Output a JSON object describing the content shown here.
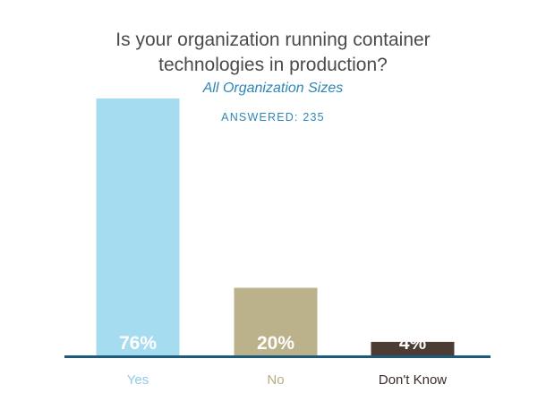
{
  "chart_data": {
    "type": "bar",
    "title": "Is your organization running container\ntechnologies in production?",
    "subtitle": "All Organization Sizes",
    "note": "ANSWERED: 235",
    "categories": [
      "Yes",
      "No",
      "Don't Know"
    ],
    "values": [
      76,
      20,
      4
    ],
    "value_labels": [
      "76%",
      "20%",
      "4%"
    ],
    "ylim": [
      0,
      100
    ],
    "grid": false,
    "legend": "none",
    "bar_colors": [
      "#a6dcf0",
      "#bbb18a",
      "#4d3c33"
    ],
    "category_label_colors": [
      "#8fcbe6",
      "#b7ad85",
      "#3a2e28"
    ],
    "value_label_color": "#ffffff",
    "axis_color": "#1e5a7a"
  }
}
